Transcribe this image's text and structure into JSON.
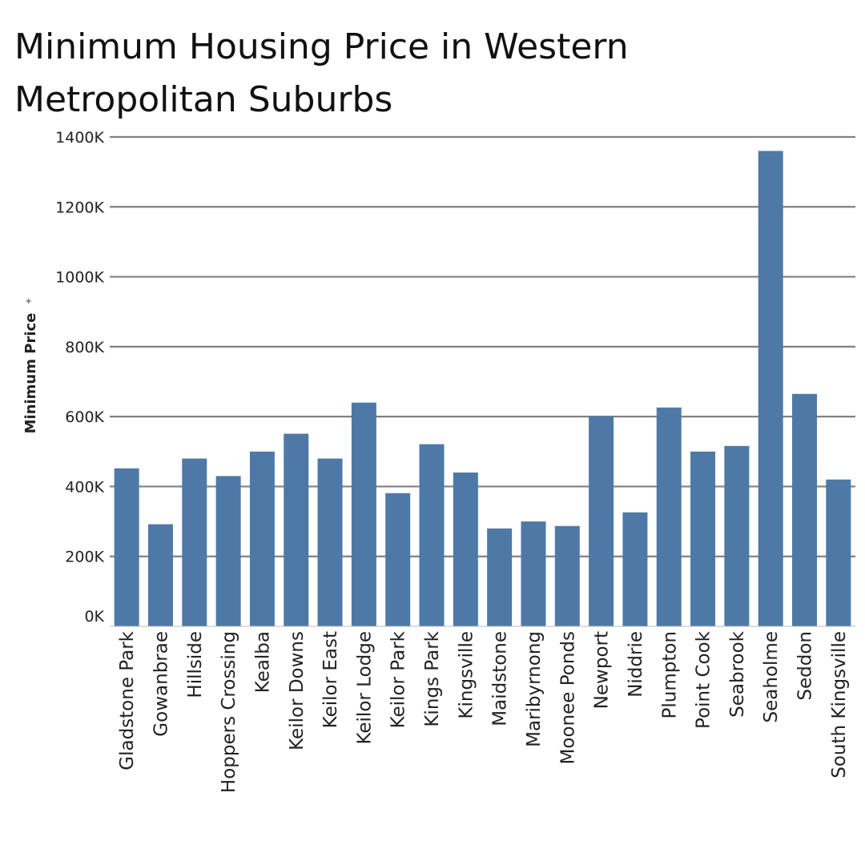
{
  "chart_data": {
    "type": "bar",
    "title": "Minimum Housing Price in Western Metropolitan Suburbs",
    "xlabel": "",
    "ylabel": "Minimum Price",
    "ylim": [
      0,
      1400000
    ],
    "ytick_values": [
      0,
      200000,
      400000,
      600000,
      800000,
      1000000,
      1200000,
      1400000
    ],
    "ytick_labels": [
      "0K",
      "200K",
      "400K",
      "600K",
      "800K",
      "1000K",
      "1200K",
      "1400K"
    ],
    "grid": true,
    "bar_color": "#4e79a7",
    "categories": [
      "Gladstone Park",
      "Gowanbrae",
      "Hillside",
      "Hoppers Crossing",
      "Kealba",
      "Keilor Downs",
      "Keilor East",
      "Keilor Lodge",
      "Keilor Park",
      "Kings Park",
      "Kingsville",
      "Maidstone",
      "Maribyrnong",
      "Moonee Ponds",
      "Newport",
      "Niddrie",
      "Plumpton",
      "Point Cook",
      "Seabrook",
      "Seaholme",
      "Seddon",
      "South Kingsville"
    ],
    "values": [
      452000,
      292000,
      480000,
      430000,
      500000,
      551000,
      480000,
      640000,
      381000,
      521000,
      440000,
      280000,
      300000,
      287000,
      601000,
      326000,
      626000,
      500000,
      516000,
      1360000,
      665000,
      420000
    ]
  }
}
